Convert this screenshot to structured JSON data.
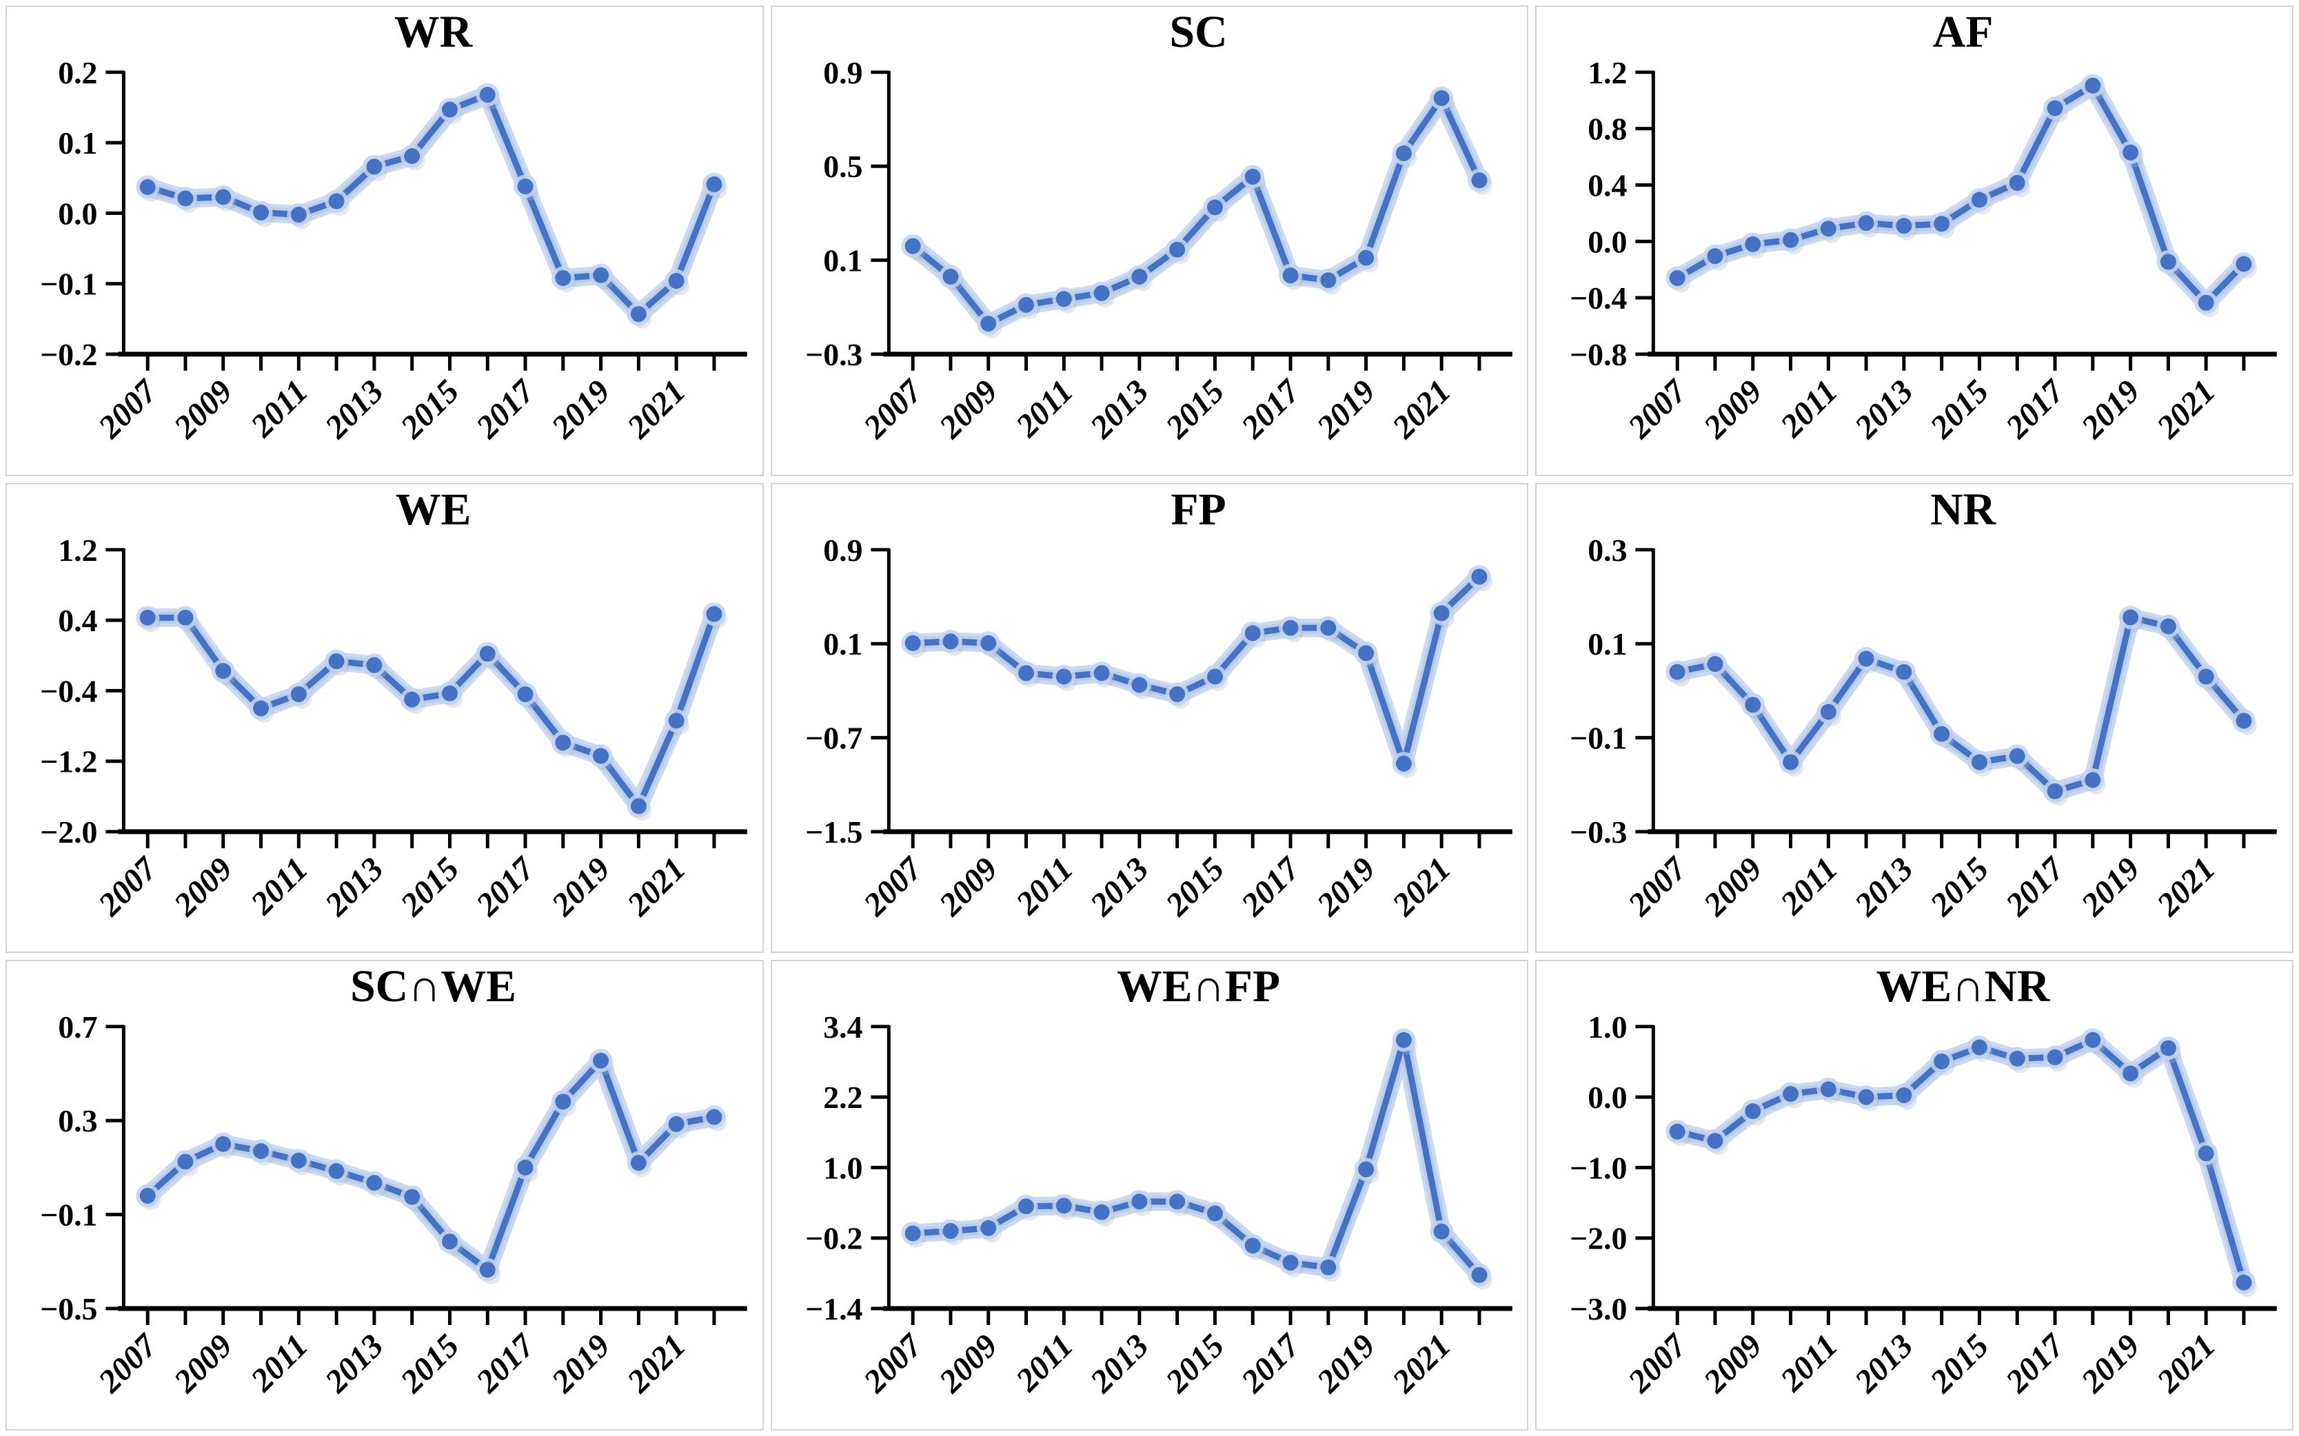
{
  "figure": {
    "description": "3x3 grid of small-multiple line charts, years 2007-2022",
    "rows": 3,
    "cols": 3
  },
  "style": {
    "line_color": "#4472c4",
    "marker_color": "#4472c4",
    "glow_color": "#c3d3ee",
    "glow_color2": "#a9c2e8",
    "shadow_color": "#aab2bf",
    "axis_color": "#000000",
    "text_color": "#000000",
    "panel_border": "#d3d3d3",
    "background": "#ffffff"
  },
  "x_tick_labels": [
    "2007",
    "2009",
    "2011",
    "2013",
    "2015",
    "2017",
    "2019",
    "2021"
  ],
  "chart_data": [
    {
      "type": "line",
      "title": "WR",
      "x": [
        2007,
        2008,
        2009,
        2010,
        2011,
        2012,
        2013,
        2014,
        2015,
        2016,
        2017,
        2018,
        2019,
        2020,
        2021,
        2022
      ],
      "x_tick_labels": [
        "2007",
        "2009",
        "2011",
        "2013",
        "2015",
        "2017",
        "2019",
        "2021"
      ],
      "values": [
        0.037,
        0.021,
        0.023,
        0.001,
        -0.002,
        0.017,
        0.066,
        0.081,
        0.147,
        0.168,
        0.038,
        -0.092,
        -0.088,
        -0.143,
        -0.096,
        0.041
      ],
      "ylim": [
        -0.2,
        0.2
      ],
      "yticks": [
        0.2,
        0.1,
        0.0,
        -0.1,
        -0.2
      ],
      "ytick_labels": [
        "0.2",
        "0.1",
        "0.0",
        "−0.1",
        "−0.2"
      ],
      "grid": false,
      "legend": "none"
    },
    {
      "type": "line",
      "title": "SC",
      "x": [
        2007,
        2008,
        2009,
        2010,
        2011,
        2012,
        2013,
        2014,
        2015,
        2016,
        2017,
        2018,
        2019,
        2020,
        2021,
        2022
      ],
      "x_tick_labels": [
        "2007",
        "2009",
        "2011",
        "2013",
        "2015",
        "2017",
        "2019",
        "2021"
      ],
      "values": [
        0.16,
        0.03,
        -0.17,
        -0.09,
        -0.065,
        -0.04,
        0.03,
        0.145,
        0.325,
        0.455,
        0.035,
        0.015,
        0.11,
        0.555,
        0.79,
        0.44
      ],
      "ylim": [
        -0.3,
        0.9
      ],
      "yticks": [
        0.9,
        0.5,
        0.1,
        -0.3
      ],
      "ytick_labels": [
        "0.9",
        "0.5",
        "0.1",
        "−0.3"
      ],
      "grid": false,
      "legend": "none"
    },
    {
      "type": "line",
      "title": "AF",
      "x": [
        2007,
        2008,
        2009,
        2010,
        2011,
        2012,
        2013,
        2014,
        2015,
        2016,
        2017,
        2018,
        2019,
        2020,
        2021,
        2022
      ],
      "x_tick_labels": [
        "2007",
        "2009",
        "2011",
        "2013",
        "2015",
        "2017",
        "2019",
        "2021"
      ],
      "values": [
        -0.26,
        -0.105,
        -0.02,
        0.01,
        0.09,
        0.13,
        0.11,
        0.125,
        0.295,
        0.415,
        0.945,
        1.105,
        0.63,
        -0.145,
        -0.435,
        -0.16
      ],
      "ylim": [
        -0.8,
        1.2
      ],
      "yticks": [
        1.2,
        0.8,
        0.4,
        0.0,
        -0.4,
        -0.8
      ],
      "ytick_labels": [
        "1.2",
        "0.8",
        "0.4",
        "0.0",
        "−0.4",
        "−0.8"
      ],
      "grid": false,
      "legend": "none"
    },
    {
      "type": "line",
      "title": "WE",
      "x": [
        2007,
        2008,
        2009,
        2010,
        2011,
        2012,
        2013,
        2014,
        2015,
        2016,
        2017,
        2018,
        2019,
        2020,
        2021,
        2022
      ],
      "x_tick_labels": [
        "2007",
        "2009",
        "2011",
        "2013",
        "2015",
        "2017",
        "2019",
        "2021"
      ],
      "values": [
        0.43,
        0.43,
        -0.175,
        -0.6,
        -0.44,
        -0.065,
        -0.11,
        -0.5,
        -0.43,
        0.02,
        -0.44,
        -0.99,
        -1.14,
        -1.71,
        -0.74,
        0.47
      ],
      "ylim": [
        -2.0,
        1.2
      ],
      "yticks": [
        1.2,
        0.4,
        -0.4,
        -1.2,
        -2.0
      ],
      "ytick_labels": [
        "1.2",
        "0.4",
        "−0.4",
        "−1.2",
        "−2.0"
      ],
      "grid": false,
      "legend": "none"
    },
    {
      "type": "line",
      "title": "FP",
      "x": [
        2007,
        2008,
        2009,
        2010,
        2011,
        2012,
        2013,
        2014,
        2015,
        2016,
        2017,
        2018,
        2019,
        2020,
        2021,
        2022
      ],
      "x_tick_labels": [
        "2007",
        "2009",
        "2011",
        "2013",
        "2015",
        "2017",
        "2019",
        "2021"
      ],
      "values": [
        0.105,
        0.12,
        0.105,
        -0.15,
        -0.18,
        -0.15,
        -0.25,
        -0.33,
        -0.18,
        0.19,
        0.235,
        0.235,
        0.02,
        -0.92,
        0.36,
        0.67
      ],
      "ylim": [
        -1.5,
        0.9
      ],
      "yticks": [
        0.9,
        0.1,
        -0.7,
        -1.5
      ],
      "ytick_labels": [
        "0.9",
        "0.1",
        "−0.7",
        "−1.5"
      ],
      "grid": false,
      "legend": "none"
    },
    {
      "type": "line",
      "title": "NR",
      "x": [
        2007,
        2008,
        2009,
        2010,
        2011,
        2012,
        2013,
        2014,
        2015,
        2016,
        2017,
        2018,
        2019,
        2020,
        2021,
        2022
      ],
      "x_tick_labels": [
        "2007",
        "2009",
        "2011",
        "2013",
        "2015",
        "2017",
        "2019",
        "2021"
      ],
      "values": [
        0.04,
        0.057,
        -0.03,
        -0.152,
        -0.045,
        0.068,
        0.04,
        -0.092,
        -0.152,
        -0.139,
        -0.214,
        -0.19,
        0.156,
        0.137,
        0.03,
        -0.064
      ],
      "ylim": [
        -0.3,
        0.3
      ],
      "yticks": [
        0.3,
        0.1,
        -0.1,
        -0.3
      ],
      "ytick_labels": [
        "0.3",
        "0.1",
        "−0.1",
        "−0.3"
      ],
      "grid": false,
      "legend": "none"
    },
    {
      "type": "line",
      "title": "SC∩WE",
      "x": [
        2007,
        2008,
        2009,
        2010,
        2011,
        2012,
        2013,
        2014,
        2015,
        2016,
        2017,
        2018,
        2019,
        2020,
        2021,
        2022
      ],
      "x_tick_labels": [
        "2007",
        "2009",
        "2011",
        "2013",
        "2015",
        "2017",
        "2019",
        "2021"
      ],
      "values": [
        -0.02,
        0.125,
        0.2,
        0.17,
        0.13,
        0.085,
        0.035,
        -0.025,
        -0.215,
        -0.335,
        0.1,
        0.38,
        0.555,
        0.12,
        0.285,
        0.315
      ],
      "ylim": [
        -0.5,
        0.7
      ],
      "yticks": [
        0.7,
        0.3,
        -0.1,
        -0.5
      ],
      "ytick_labels": [
        "0.7",
        "0.3",
        "−0.1",
        "−0.5"
      ],
      "grid": false,
      "legend": "none"
    },
    {
      "type": "line",
      "title": "WE∩FP",
      "x": [
        2007,
        2008,
        2009,
        2010,
        2011,
        2012,
        2013,
        2014,
        2015,
        2016,
        2017,
        2018,
        2019,
        2020,
        2021,
        2022
      ],
      "x_tick_labels": [
        "2007",
        "2009",
        "2011",
        "2013",
        "2015",
        "2017",
        "2019",
        "2021"
      ],
      "values": [
        -0.12,
        -0.08,
        -0.03,
        0.34,
        0.35,
        0.24,
        0.42,
        0.42,
        0.22,
        -0.33,
        -0.62,
        -0.7,
        0.97,
        3.17,
        -0.09,
        -0.83
      ],
      "ylim": [
        -1.4,
        3.4
      ],
      "yticks": [
        3.4,
        2.2,
        1.0,
        -0.2,
        -1.4
      ],
      "ytick_labels": [
        "3.4",
        "2.2",
        "1.0",
        "−0.2",
        "−1.4"
      ],
      "grid": false,
      "legend": "none"
    },
    {
      "type": "line",
      "title": "WE∩NR",
      "x": [
        2007,
        2008,
        2009,
        2010,
        2011,
        2012,
        2013,
        2014,
        2015,
        2016,
        2017,
        2018,
        2019,
        2020,
        2021,
        2022
      ],
      "x_tick_labels": [
        "2007",
        "2009",
        "2011",
        "2013",
        "2015",
        "2017",
        "2019",
        "2021"
      ],
      "values": [
        -0.49,
        -0.62,
        -0.2,
        0.045,
        0.11,
        0.0,
        0.025,
        0.505,
        0.705,
        0.545,
        0.565,
        0.81,
        0.335,
        0.695,
        -0.8,
        -2.63
      ],
      "ylim": [
        -3.0,
        1.0
      ],
      "yticks": [
        1.0,
        0.0,
        -1.0,
        -2.0,
        -3.0
      ],
      "ytick_labels": [
        "1.0",
        "0.0",
        "−1.0",
        "−2.0",
        "−3.0"
      ],
      "grid": false,
      "legend": "none"
    }
  ]
}
